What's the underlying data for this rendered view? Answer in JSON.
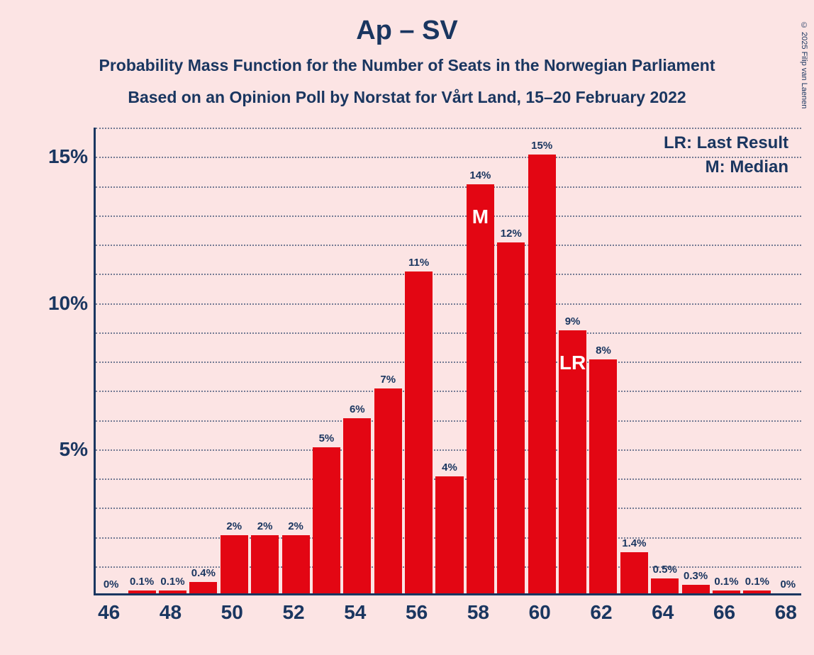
{
  "copyright": "© 2025 Filip van Laenen",
  "title": "Ap – SV",
  "subtitle1": "Probability Mass Function for the Number of Seats in the Norwegian Parliament",
  "subtitle2": "Based on an Opinion Poll by Norstat for Vårt Land, 15–20 February 2022",
  "legend": {
    "lr": "LR: Last Result",
    "m": "M: Median"
  },
  "chart": {
    "type": "bar",
    "background_color": "#fce4e4",
    "bar_color": "#e30613",
    "axis_color": "#1a3660",
    "grid_color": "#1a3660",
    "text_color": "#1a3660",
    "bar_text_color": "#ffffff",
    "title_fontsize": 38,
    "subtitle_fontsize": 23,
    "axis_label_fontsize": 28,
    "bar_label_fontsize": 15,
    "legend_fontsize": 24,
    "bar_width_ratio": 0.9,
    "ylim": [
      0,
      16
    ],
    "ytick_step": 1,
    "ytick_major": [
      5,
      10,
      15
    ],
    "xlim": [
      46,
      68
    ],
    "xtick_step": 2,
    "median_seat": 58,
    "last_result_seat": 61,
    "categories": [
      46,
      47,
      48,
      49,
      50,
      51,
      52,
      53,
      54,
      55,
      56,
      57,
      58,
      59,
      60,
      61,
      62,
      63,
      64,
      65,
      66,
      67,
      68
    ],
    "values": [
      0,
      0.1,
      0.1,
      0.4,
      2,
      2,
      2,
      5,
      6,
      7,
      11,
      4,
      14,
      12,
      15,
      9,
      8,
      1.4,
      0.5,
      0.3,
      0.1,
      0.1,
      0
    ],
    "labels": [
      "0%",
      "0.1%",
      "0.1%",
      "0.4%",
      "2%",
      "2%",
      "2%",
      "5%",
      "6%",
      "7%",
      "11%",
      "4%",
      "14%",
      "12%",
      "15%",
      "9%",
      "8%",
      "1.4%",
      "0.5%",
      "0.3%",
      "0.1%",
      "0.1%",
      "0%"
    ]
  }
}
